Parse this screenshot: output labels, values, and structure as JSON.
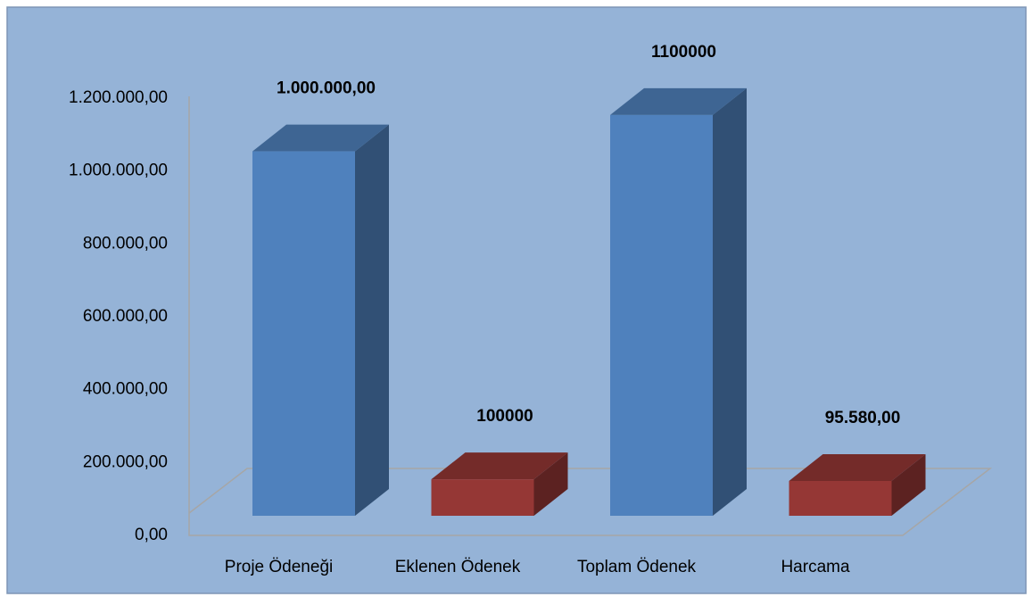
{
  "chart_data": {
    "type": "bar3d",
    "categories": [
      "Proje Ödeneği",
      "Eklenen Ödenek",
      "Toplam Ödenek",
      "Harcama"
    ],
    "values": [
      1000000,
      100000,
      1100000,
      95580
    ],
    "value_labels": [
      "1.000.000,00",
      "100000",
      "1100000",
      "95.580,00"
    ],
    "colors": [
      "#4f81bd",
      "#953735",
      "#4f81bd",
      "#953735"
    ],
    "ylim": [
      0,
      1200000
    ],
    "yticks": [
      {
        "value": 0,
        "label": "0,00"
      },
      {
        "value": 200000,
        "label": "200.000,00"
      },
      {
        "value": 400000,
        "label": "400.000,00"
      },
      {
        "value": 600000,
        "label": "600.000,00"
      },
      {
        "value": 800000,
        "label": "800.000,00"
      },
      {
        "value": 1000000,
        "label": "1.000.000,00"
      },
      {
        "value": 1200000,
        "label": "1.200.000,00"
      }
    ]
  }
}
